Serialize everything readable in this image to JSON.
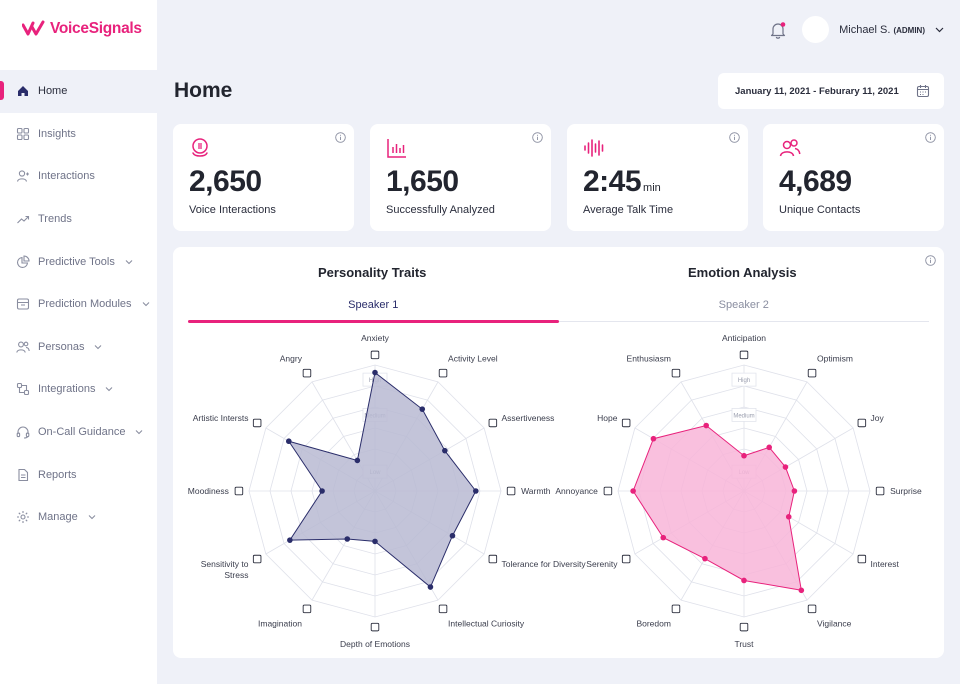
{
  "brand": {
    "name": "VoiceSignals",
    "color": "#e8227c"
  },
  "sidebar": {
    "items": [
      {
        "label": "Home",
        "icon": "home-icon",
        "active": true,
        "chevron": false
      },
      {
        "label": "Insights",
        "icon": "grid-icon",
        "active": false,
        "chevron": false
      },
      {
        "label": "Interactions",
        "icon": "user-icon",
        "active": false,
        "chevron": false
      },
      {
        "label": "Trends",
        "icon": "trend-icon",
        "active": false,
        "chevron": false
      },
      {
        "label": "Predictive Tools",
        "icon": "pie-icon",
        "active": false,
        "chevron": true
      },
      {
        "label": "Prediction Modules",
        "icon": "box-icon",
        "active": false,
        "chevron": true
      },
      {
        "label": "Personas",
        "icon": "users-icon",
        "active": false,
        "chevron": true
      },
      {
        "label": "Integrations",
        "icon": "integrations-icon",
        "active": false,
        "chevron": true
      },
      {
        "label": "On-Call Guidance",
        "icon": "headset-icon",
        "active": false,
        "chevron": true
      },
      {
        "label": "Reports",
        "icon": "document-icon",
        "active": false,
        "chevron": false
      },
      {
        "label": "Manage",
        "icon": "gear-icon",
        "active": false,
        "chevron": true
      }
    ]
  },
  "header": {
    "user_name": "Michael S.",
    "user_role": "(ADMIN)",
    "page_title": "Home",
    "date_range": "January 11, 2021 - Feburary 11, 2021"
  },
  "stats": [
    {
      "value": "2,650",
      "unit": "",
      "label": "Voice Interactions",
      "icon": "microphone-icon"
    },
    {
      "value": "1,650",
      "unit": "",
      "label": "Successfully Analyzed",
      "icon": "bar-chart-icon"
    },
    {
      "value": "2:45",
      "unit": "min",
      "label": "Average Talk Time",
      "icon": "waveform-icon"
    },
    {
      "value": "4,689",
      "unit": "",
      "label": "Unique Contacts",
      "icon": "contacts-icon"
    }
  ],
  "panel": {
    "personality_title": "Personality Traits",
    "emotion_title": "Emotion Analysis",
    "tabs": [
      {
        "label": "Speaker 1",
        "active": true
      },
      {
        "label": "Speaker 2",
        "active": false
      }
    ]
  },
  "chart_data": [
    {
      "type": "radar",
      "title": "Personality Traits",
      "levels": [
        "Low",
        "Medium",
        "High"
      ],
      "range": [
        0,
        1
      ],
      "color": "#2a2d6a",
      "fill": "#b9bad2",
      "axes": [
        "Anxiety",
        "Activity Level",
        "Assertiveness",
        "Warmth",
        "Tolerance for Diversity",
        "Intellectual Curiosity",
        "Depth of Emotions",
        "Imagination",
        "Sensitivity to Stress",
        "Moodiness",
        "Artistic Intersts",
        "Angry"
      ],
      "values": [
        0.94,
        0.75,
        0.64,
        0.8,
        0.71,
        0.88,
        0.4,
        0.44,
        0.78,
        0.42,
        0.79,
        0.28
      ]
    },
    {
      "type": "radar",
      "title": "Emotion Analysis",
      "levels": [
        "Low",
        "Medium",
        "High"
      ],
      "range": [
        0,
        1
      ],
      "color": "#e8227c",
      "fill": "#f8b5d8",
      "axes": [
        "Anticipation",
        "Optimism",
        "Joy",
        "Surprise",
        "Interest",
        "Vigilance",
        "Trust",
        "Boredom",
        "Serenity",
        "Annoyance",
        "Hope",
        "Enthusiasm"
      ],
      "values": [
        0.28,
        0.4,
        0.38,
        0.4,
        0.41,
        0.91,
        0.71,
        0.62,
        0.74,
        0.88,
        0.83,
        0.6
      ]
    }
  ]
}
